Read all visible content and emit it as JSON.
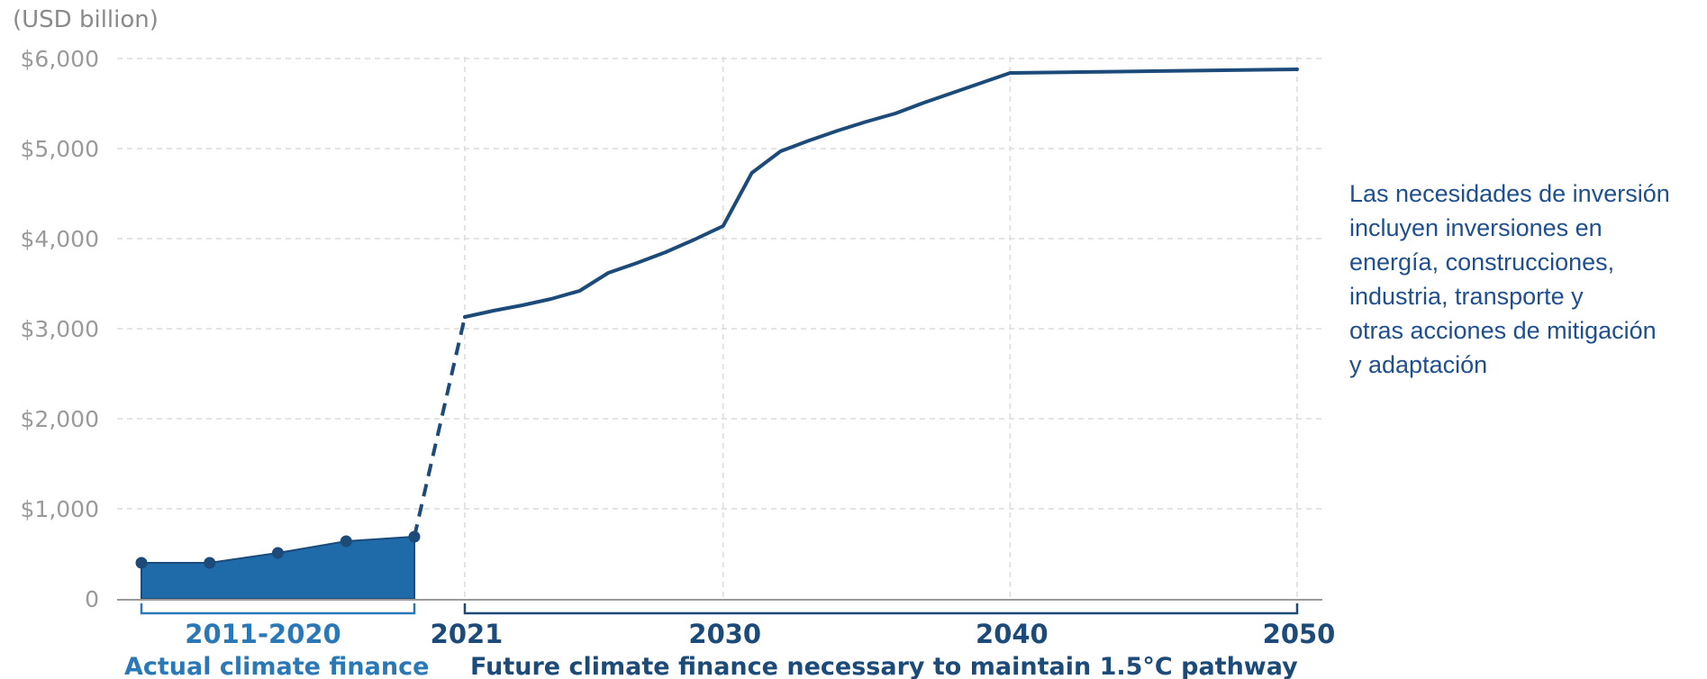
{
  "chart_data": {
    "type": "line",
    "unit_label": "(USD billion)",
    "y_tick_labels": [
      "0",
      "$1,000",
      "$2,000",
      "$3,000",
      "$4,000",
      "$5,000",
      "$6,000"
    ],
    "y_tick_values": [
      0,
      1000,
      2000,
      3000,
      4000,
      5000,
      6000
    ],
    "ylim": [
      0,
      6000
    ],
    "grid": "dashed",
    "actual": {
      "name": "Actual climate finance",
      "period_label": "2011-2020",
      "style": "filled area",
      "points": [
        {
          "x": 2011.0,
          "y": 400
        },
        {
          "x": 2013.4,
          "y": 400
        },
        {
          "x": 2015.8,
          "y": 510
        },
        {
          "x": 2018.2,
          "y": 640
        },
        {
          "x": 2020.6,
          "y": 690
        }
      ]
    },
    "bridge": {
      "style": "dashed",
      "points": [
        {
          "x": 2020.6,
          "y": 690
        },
        {
          "x": 2021,
          "y": 3130
        }
      ]
    },
    "future": {
      "name": "Future climate finance necessary to maintain 1.5°C pathway",
      "style": "line",
      "points": [
        {
          "x": 2021,
          "y": 3130
        },
        {
          "x": 2022,
          "y": 3200
        },
        {
          "x": 2023,
          "y": 3260
        },
        {
          "x": 2024,
          "y": 3330
        },
        {
          "x": 2025,
          "y": 3420
        },
        {
          "x": 2026,
          "y": 3620
        },
        {
          "x": 2027,
          "y": 3730
        },
        {
          "x": 2028,
          "y": 3850
        },
        {
          "x": 2029,
          "y": 3990
        },
        {
          "x": 2030,
          "y": 4140
        },
        {
          "x": 2031,
          "y": 4730
        },
        {
          "x": 2032,
          "y": 4970
        },
        {
          "x": 2033,
          "y": 5090
        },
        {
          "x": 2034,
          "y": 5200
        },
        {
          "x": 2035,
          "y": 5300
        },
        {
          "x": 2036,
          "y": 5390
        },
        {
          "x": 2037,
          "y": 5510
        },
        {
          "x": 2038,
          "y": 5620
        },
        {
          "x": 2039,
          "y": 5730
        },
        {
          "x": 2040,
          "y": 5840
        },
        {
          "x": 2050,
          "y": 5880
        }
      ]
    },
    "x_tick_labels": [
      "2021",
      "2030",
      "2040",
      "2050"
    ],
    "x_tick_values": [
      2021,
      2030,
      2040,
      2050
    ],
    "vertical_grid_years": [
      2021,
      2030,
      2040,
      2050
    ],
    "colors": {
      "fill": "#1f6aa8",
      "line": "#1c4b7a",
      "grid": "#dcdcdc",
      "axis": "#9a9a9a",
      "actual_text": "#2a78b6",
      "future_text": "#1c4b7a",
      "note_text": "#1f4f8e"
    }
  },
  "note": {
    "lines": [
      "Las necesidades de inversión",
      "incluyen inversiones en",
      "energía, construcciones,",
      "industria, transporte y",
      "otras acciones de mitigación",
      "y adaptación"
    ]
  }
}
